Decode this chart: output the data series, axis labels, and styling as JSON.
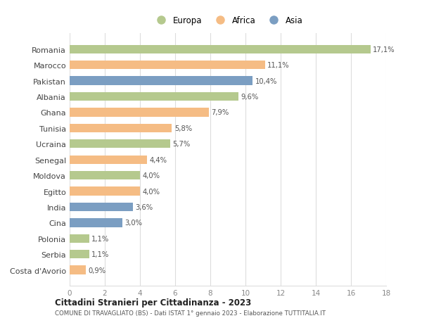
{
  "countries": [
    "Romania",
    "Marocco",
    "Pakistan",
    "Albania",
    "Ghana",
    "Tunisia",
    "Ucraina",
    "Senegal",
    "Moldova",
    "Egitto",
    "India",
    "Cina",
    "Polonia",
    "Serbia",
    "Costa d'Avorio"
  ],
  "values": [
    17.1,
    11.1,
    10.4,
    9.6,
    7.9,
    5.8,
    5.7,
    4.4,
    4.0,
    4.0,
    3.6,
    3.0,
    1.1,
    1.1,
    0.9
  ],
  "labels": [
    "17,1%",
    "11,1%",
    "10,4%",
    "9,6%",
    "7,9%",
    "5,8%",
    "5,7%",
    "4,4%",
    "4,0%",
    "4,0%",
    "3,6%",
    "3,0%",
    "1,1%",
    "1,1%",
    "0,9%"
  ],
  "continents": [
    "Europa",
    "Africa",
    "Asia",
    "Europa",
    "Africa",
    "Africa",
    "Europa",
    "Africa",
    "Europa",
    "Africa",
    "Asia",
    "Asia",
    "Europa",
    "Europa",
    "Africa"
  ],
  "colors": {
    "Europa": "#b5c98e",
    "Africa": "#f5bc84",
    "Asia": "#7b9ec2"
  },
  "legend": [
    "Europa",
    "Africa",
    "Asia"
  ],
  "title": "Cittadini Stranieri per Cittadinanza - 2023",
  "subtitle": "COMUNE DI TRAVAGLIATO (BS) - Dati ISTAT 1° gennaio 2023 - Elaborazione TUTTITALIA.IT",
  "xlim": [
    0,
    18
  ],
  "xticks": [
    0,
    2,
    4,
    6,
    8,
    10,
    12,
    14,
    16,
    18
  ],
  "background_color": "#ffffff",
  "grid_color": "#dddddd"
}
